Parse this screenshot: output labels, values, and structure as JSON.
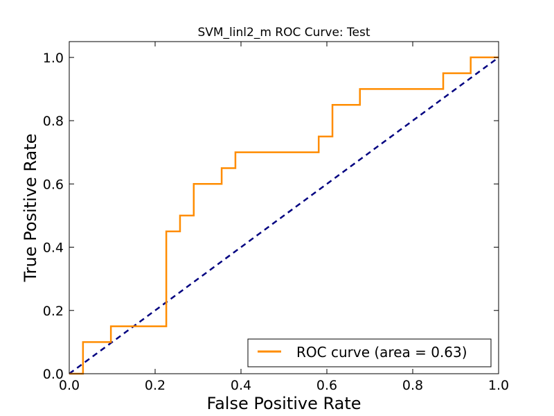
{
  "chart_data": {
    "type": "line",
    "title": "SVM_linl2_m ROC Curve: Test",
    "xlabel": "False Positive Rate",
    "ylabel": "True Positive Rate",
    "xlim": [
      0.0,
      1.0
    ],
    "ylim": [
      0.0,
      1.05
    ],
    "xticks": [
      "0.0",
      "0.2",
      "0.4",
      "0.6",
      "0.8",
      "1.0"
    ],
    "yticks": [
      "0.0",
      "0.2",
      "0.4",
      "0.6",
      "0.8",
      "1.0"
    ],
    "xtick_values": [
      0.0,
      0.2,
      0.4,
      0.6,
      0.8,
      1.0
    ],
    "ytick_values": [
      0.0,
      0.2,
      0.4,
      0.6,
      0.8,
      1.0
    ],
    "grid": false,
    "legend_position": "lower-right",
    "series": [
      {
        "name": "ROC curve (area = 0.63)",
        "color": "#ff8c00",
        "style": "solid",
        "x": [
          0.0,
          0.032,
          0.032,
          0.097,
          0.097,
          0.226,
          0.226,
          0.258,
          0.258,
          0.29,
          0.29,
          0.355,
          0.355,
          0.387,
          0.387,
          0.581,
          0.581,
          0.613,
          0.613,
          0.677,
          0.677,
          0.871,
          0.871,
          0.935,
          0.935,
          1.0
        ],
        "y": [
          0.0,
          0.0,
          0.1,
          0.1,
          0.15,
          0.15,
          0.45,
          0.45,
          0.5,
          0.5,
          0.6,
          0.6,
          0.65,
          0.65,
          0.7,
          0.7,
          0.75,
          0.75,
          0.85,
          0.85,
          0.9,
          0.9,
          0.95,
          0.95,
          1.0,
          1.0
        ]
      },
      {
        "name": "",
        "color": "#000080",
        "style": "dashed",
        "x": [
          0.0,
          1.0
        ],
        "y": [
          0.0,
          1.0
        ]
      }
    ]
  }
}
